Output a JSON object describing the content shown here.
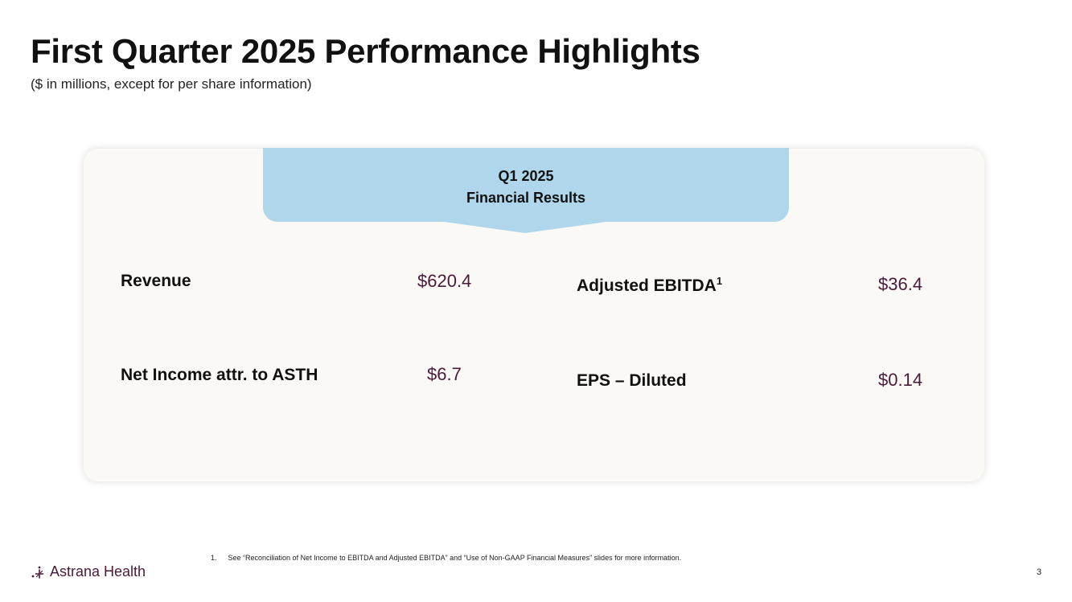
{
  "slide": {
    "title": "First Quarter 2025 Performance Highlights",
    "subtitle": "($ in millions, except for per share information)",
    "page_number": "3"
  },
  "banner": {
    "line1": "Q1 2025",
    "line2": "Financial Results",
    "color": "#afd6ea"
  },
  "metrics": {
    "revenue": {
      "label": "Revenue",
      "value": "$620.4"
    },
    "adjusted_ebitda": {
      "label": "Adjusted EBITDA",
      "footnote_ref": "1",
      "value": "$36.4"
    },
    "net_income": {
      "label": "Net Income attr. to ASTH",
      "value": "$6.7"
    },
    "eps": {
      "label": "EPS – Diluted",
      "value": "$0.14"
    }
  },
  "footnote": {
    "number": "1.",
    "text": "See “Reconciliation of Net Income to EBITDA and Adjusted EBITDA”  and  “Use of Non-GAAP Financial Measures” slides for more information."
  },
  "logo": {
    "text": "Astrana Health",
    "icon": "astrana-mark-icon",
    "color": "#4a1a3a"
  },
  "colors": {
    "value_text": "#4a1a3a",
    "card_background": "#faf9f5"
  }
}
